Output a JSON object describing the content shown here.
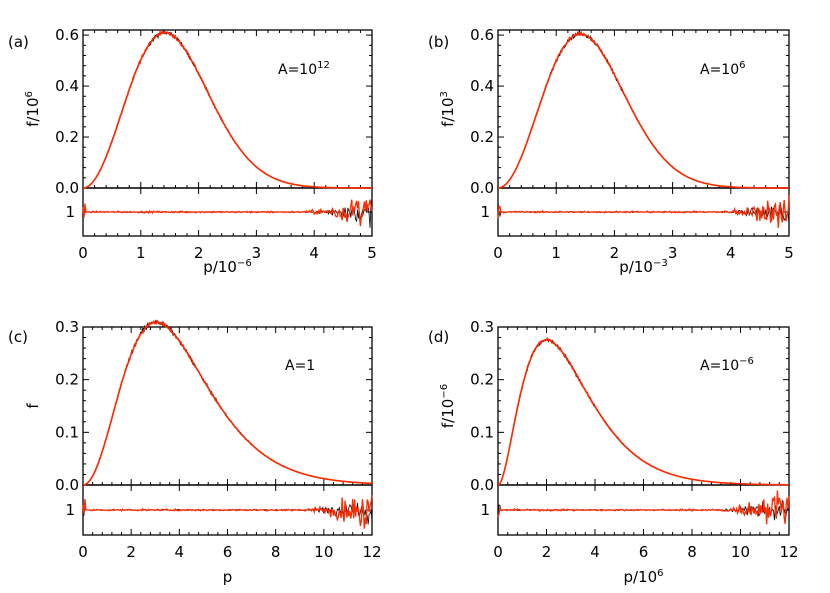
{
  "colors": {
    "model": "#ff2a00",
    "data": "#000000",
    "frame": "#000000"
  },
  "chart_data": [
    {
      "type": "line",
      "panel_label": "(a)",
      "annotation": {
        "base": "A=10",
        "exp": "12"
      },
      "xlabel": {
        "base": "p/10",
        "exp": "−6"
      },
      "ylabel": {
        "base": "f/10",
        "exp": "6"
      },
      "xlim": [
        0,
        5
      ],
      "ylim": [
        0,
        0.62
      ],
      "xticks": [
        "0",
        "1",
        "2",
        "3",
        "4",
        "5"
      ],
      "xtick_values": [
        0,
        1,
        2,
        3,
        4,
        5
      ],
      "yticks": [
        "0.0",
        "0.2",
        "0.4",
        "0.6"
      ],
      "ytick_values": [
        0,
        0.2,
        0.4,
        0.6
      ],
      "ratio_ylim": [
        0.4,
        1.6
      ],
      "ratio_ticks": [
        "1"
      ],
      "ratio_tick_values": [
        1
      ],
      "curve": {
        "peak_x": 1.414,
        "peak_y": 0.61,
        "form": "maxwell"
      },
      "noise_onset": 3.8
    },
    {
      "type": "line",
      "panel_label": "(b)",
      "annotation": {
        "base": "A=10",
        "exp": "6"
      },
      "xlabel": {
        "base": "p/10",
        "exp": "−3"
      },
      "ylabel": {
        "base": "f/10",
        "exp": "3"
      },
      "xlim": [
        0,
        5
      ],
      "ylim": [
        0,
        0.62
      ],
      "xticks": [
        "0",
        "1",
        "2",
        "3",
        "4",
        "5"
      ],
      "xtick_values": [
        0,
        1,
        2,
        3,
        4,
        5
      ],
      "yticks": [
        "0.0",
        "0.2",
        "0.4",
        "0.6"
      ],
      "ytick_values": [
        0,
        0.2,
        0.4,
        0.6
      ],
      "ratio_ylim": [
        0.4,
        1.6
      ],
      "ratio_ticks": [
        "1"
      ],
      "ratio_tick_values": [
        1
      ],
      "curve": {
        "peak_x": 1.414,
        "peak_y": 0.605,
        "form": "maxwell"
      },
      "noise_onset": 3.8
    },
    {
      "type": "line",
      "panel_label": "(c)",
      "annotation": {
        "base": "A=1",
        "exp": ""
      },
      "xlabel": {
        "base": "p",
        "exp": ""
      },
      "ylabel": {
        "base": "f",
        "exp": ""
      },
      "xlim": [
        0,
        12
      ],
      "ylim": [
        0,
        0.3
      ],
      "xticks": [
        "0",
        "2",
        "4",
        "6",
        "8",
        "10",
        "12"
      ],
      "xtick_values": [
        0,
        2,
        4,
        6,
        8,
        10,
        12
      ],
      "yticks": [
        "0.0",
        "0.1",
        "0.2",
        "0.3"
      ],
      "ytick_values": [
        0,
        0.1,
        0.2,
        0.3
      ],
      "ratio_ylim": [
        0.4,
        1.6
      ],
      "ratio_ticks": [
        "1"
      ],
      "ratio_tick_values": [
        1
      ],
      "curve": {
        "peak_x": 2.2,
        "peak_y": 0.27,
        "form": "juttner"
      },
      "noise_onset": 9.0
    },
    {
      "type": "line",
      "panel_label": "(d)",
      "annotation": {
        "base": "A=10",
        "exp": "−6"
      },
      "xlabel": {
        "base": "p/10",
        "exp": "6"
      },
      "ylabel": {
        "base": "f/10",
        "exp": "−6"
      },
      "xlim": [
        0,
        12
      ],
      "ylim": [
        0,
        0.3
      ],
      "xticks": [
        "0",
        "2",
        "4",
        "6",
        "8",
        "10",
        "12"
      ],
      "xtick_values": [
        0,
        2,
        4,
        6,
        8,
        10,
        12
      ],
      "yticks": [
        "0.0",
        "0.1",
        "0.2",
        "0.3"
      ],
      "ytick_values": [
        0,
        0.1,
        0.2,
        0.3
      ],
      "ratio_ylim": [
        0.4,
        1.6
      ],
      "ratio_ticks": [
        "1"
      ],
      "ratio_tick_values": [
        1
      ],
      "curve": {
        "peak_x": 2.0,
        "peak_y": 0.275,
        "form": "ultra"
      },
      "noise_onset": 9.0
    }
  ]
}
